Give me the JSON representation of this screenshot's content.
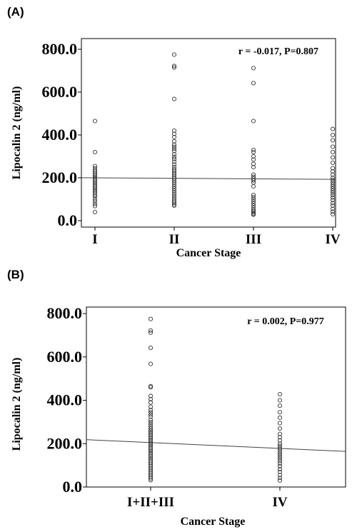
{
  "chart_data": [
    {
      "panel": "(A)",
      "type": "scatter",
      "categories": [
        "I",
        "II",
        "III",
        "IV"
      ],
      "xlabel": "Cancer Stage",
      "ylabel": "Lipocalin 2 (ng/ml)",
      "ylim": [
        -30,
        850
      ],
      "yticks": [
        "0.0",
        "200.0",
        "400.0",
        "600.0",
        "800.0"
      ],
      "annotation": "r = -0.017, P=0.807",
      "fit_line": {
        "y_at_first": 200,
        "y_at_last": 193
      },
      "points": [
        {
          "category": "I",
          "values": [
            465,
            320,
            255,
            245,
            235,
            228,
            220,
            212,
            205,
            198,
            190,
            182,
            175,
            168,
            160,
            152,
            145,
            138,
            130,
            120,
            112,
            100,
            90,
            78,
            68,
            40
          ]
        },
        {
          "category": "II",
          "values": [
            775,
            722,
            715,
            568,
            420,
            405,
            390,
            370,
            355,
            345,
            335,
            325,
            310,
            298,
            288,
            275,
            262,
            250,
            240,
            232,
            222,
            214,
            206,
            198,
            190,
            180,
            170,
            160,
            150,
            140,
            130,
            120,
            110,
            100,
            92,
            84,
            76,
            70
          ]
        },
        {
          "category": "III",
          "values": [
            712,
            642,
            465,
            330,
            320,
            300,
            285,
            265,
            250,
            215,
            205,
            196,
            188,
            178,
            160,
            120,
            110,
            100,
            90,
            80,
            70,
            60,
            50,
            44,
            38,
            32,
            28
          ]
        },
        {
          "category": "IV",
          "values": [
            428,
            400,
            375,
            345,
            320,
            295,
            270,
            245,
            230,
            215,
            200,
            190,
            180,
            170,
            160,
            150,
            140,
            130,
            120,
            108,
            96,
            82,
            70,
            55,
            42,
            30
          ]
        }
      ]
    },
    {
      "panel": "(B)",
      "type": "scatter",
      "categories": [
        "I+II+III",
        "IV"
      ],
      "xlabel": "Cancer Stage",
      "ylabel": "Lipocalin 2 (ng/ml)",
      "ylim": [
        0,
        830
      ],
      "yticks": [
        "0.0",
        "200.0",
        "400.0",
        "600.0",
        "800.0"
      ],
      "annotation": "r = 0.002, P=0.977",
      "fit_line": {
        "y_at_first": 205,
        "y_at_last": 178
      },
      "points": [
        {
          "category": "I+II+III",
          "values": [
            775,
            722,
            712,
            642,
            568,
            465,
            460,
            420,
            405,
            390,
            370,
            355,
            345,
            335,
            325,
            310,
            300,
            290,
            280,
            270,
            262,
            255,
            248,
            240,
            232,
            225,
            218,
            210,
            202,
            195,
            188,
            180,
            172,
            165,
            158,
            150,
            142,
            135,
            128,
            120,
            112,
            104,
            96,
            88,
            80,
            72,
            64,
            56,
            48,
            40,
            32
          ]
        },
        {
          "category": "IV",
          "values": [
            428,
            400,
            375,
            345,
            320,
            295,
            270,
            245,
            230,
            215,
            200,
            190,
            180,
            170,
            160,
            150,
            140,
            130,
            120,
            108,
            96,
            82,
            70,
            55,
            42,
            30
          ]
        }
      ]
    }
  ]
}
